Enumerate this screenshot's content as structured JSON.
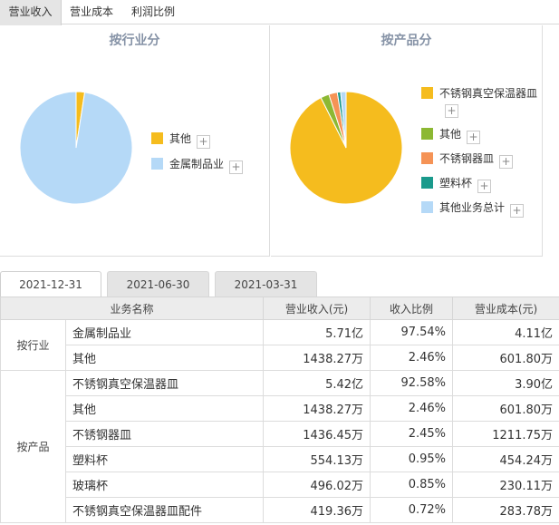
{
  "top_tabs": [
    {
      "label": "营业收入",
      "active": true
    },
    {
      "label": "营业成本",
      "active": false
    },
    {
      "label": "利润比例",
      "active": false
    }
  ],
  "charts": {
    "industry": {
      "title": "按行业分",
      "slices": [
        {
          "name": "其他",
          "percent": 2.46,
          "color": "#f5bc1e"
        },
        {
          "name": "金属制品业",
          "percent": 97.54,
          "color": "#b5d9f7"
        }
      ],
      "legend": [
        {
          "label": "其他",
          "color": "#f5bc1e"
        },
        {
          "label": "金属制品业",
          "color": "#b5d9f7"
        }
      ]
    },
    "product": {
      "title": "按产品分",
      "slices": [
        {
          "name": "不锈钢真空保温器皿",
          "percent": 92.58,
          "color": "#f5bc1e"
        },
        {
          "name": "其他",
          "percent": 2.46,
          "color": "#8cb833"
        },
        {
          "name": "不锈钢器皿",
          "percent": 2.45,
          "color": "#f59356"
        },
        {
          "name": "塑料杯",
          "percent": 0.95,
          "color": "#1a9a8c"
        },
        {
          "name": "其他业务总计",
          "percent": 1.56,
          "color": "#b5d9f7"
        }
      ],
      "legend": [
        {
          "label": "不锈钢真空保温器皿",
          "color": "#f5bc1e"
        },
        {
          "label": "其他",
          "color": "#8cb833"
        },
        {
          "label": "不锈钢器皿",
          "color": "#f59356"
        },
        {
          "label": "塑料杯",
          "color": "#1a9a8c"
        },
        {
          "label": "其他业务总计",
          "color": "#b5d9f7"
        }
      ]
    }
  },
  "plus_symbol": "+",
  "date_tabs": [
    {
      "label": "2021-12-31",
      "active": true
    },
    {
      "label": "2021-06-30",
      "active": false
    },
    {
      "label": "2021-03-31",
      "active": false
    }
  ],
  "table": {
    "headers": [
      "业务名称",
      "营业收入(元)",
      "收入比例",
      "营业成本(元)"
    ],
    "groups": [
      {
        "label": "按行业",
        "rows": [
          {
            "name": "金属制品业",
            "revenue": "5.71亿",
            "ratio": "97.54%",
            "cost": "4.11亿"
          },
          {
            "name": "其他",
            "revenue": "1438.27万",
            "ratio": "2.46%",
            "cost": "601.80万"
          }
        ]
      },
      {
        "label": "按产品",
        "rows": [
          {
            "name": "不锈钢真空保温器皿",
            "revenue": "5.42亿",
            "ratio": "92.58%",
            "cost": "3.90亿"
          },
          {
            "name": "其他",
            "revenue": "1438.27万",
            "ratio": "2.46%",
            "cost": "601.80万"
          },
          {
            "name": "不锈钢器皿",
            "revenue": "1436.45万",
            "ratio": "2.45%",
            "cost": "1211.75万"
          },
          {
            "name": "塑料杯",
            "revenue": "554.13万",
            "ratio": "0.95%",
            "cost": "454.24万"
          },
          {
            "name": "玻璃杯",
            "revenue": "496.02万",
            "ratio": "0.85%",
            "cost": "230.11万"
          },
          {
            "name": "不锈钢真空保温器皿配件",
            "revenue": "419.36万",
            "ratio": "0.72%",
            "cost": "283.78万"
          }
        ]
      }
    ]
  }
}
